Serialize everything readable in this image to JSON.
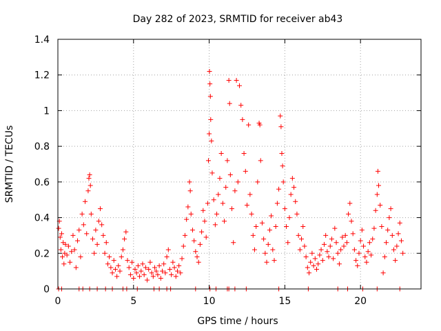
{
  "chart_data": {
    "type": "scatter",
    "title": "Day 282 of 2023, SRMTID for receiver ab43",
    "xlabel": "GPS time / hours",
    "ylabel": "SRMTID / TECUs",
    "xlim": [
      0,
      24
    ],
    "ylim": [
      0,
      1.4
    ],
    "xticks": [
      0,
      5,
      10,
      15,
      20
    ],
    "yticks": [
      0,
      0.2,
      0.4,
      0.6,
      0.8,
      1,
      1.2,
      1.4
    ],
    "ytick_labels": [
      "0",
      "0.2",
      "0.4",
      "0.6",
      "0.8",
      "1",
      "1.2",
      "1.4"
    ],
    "grid": true,
    "marker": "+",
    "color": "#ff0000",
    "series": [
      {
        "name": "SRMTID",
        "points": [
          [
            0.05,
            0.34
          ],
          [
            0.1,
            0.38
          ],
          [
            0.15,
            0.29
          ],
          [
            0.2,
            0.22
          ],
          [
            0.25,
            0.31
          ],
          [
            0.3,
            0.18
          ],
          [
            0.35,
            0.26
          ],
          [
            0.4,
            0.14
          ],
          [
            0.45,
            0.2
          ],
          [
            0.5,
            0.25
          ],
          [
            0.6,
            0.19
          ],
          [
            0.7,
            0.24
          ],
          [
            0.8,
            0.15
          ],
          [
            0.9,
            0.21
          ],
          [
            1.0,
            0.3
          ],
          [
            1.1,
            0.22
          ],
          [
            1.2,
            0.12
          ],
          [
            1.3,
            0.27
          ],
          [
            1.4,
            0.33
          ],
          [
            1.5,
            0.18
          ],
          [
            1.6,
            0.42
          ],
          [
            1.7,
            0.36
          ],
          [
            1.8,
            0.49
          ],
          [
            1.9,
            0.31
          ],
          [
            2.0,
            0.55
          ],
          [
            2.05,
            0.62
          ],
          [
            2.1,
            0.64
          ],
          [
            2.15,
            0.58
          ],
          [
            2.2,
            0.42
          ],
          [
            2.3,
            0.28
          ],
          [
            2.4,
            0.2
          ],
          [
            2.5,
            0.33
          ],
          [
            2.6,
            0.25
          ],
          [
            2.7,
            0.38
          ],
          [
            2.8,
            0.45
          ],
          [
            2.9,
            0.36
          ],
          [
            3.0,
            0.3
          ],
          [
            3.1,
            0.2
          ],
          [
            3.2,
            0.26
          ],
          [
            3.3,
            0.14
          ],
          [
            3.4,
            0.18
          ],
          [
            3.5,
            0.12
          ],
          [
            3.6,
            0.09
          ],
          [
            3.7,
            0.16
          ],
          [
            3.8,
            0.11
          ],
          [
            3.9,
            0.07
          ],
          [
            4.0,
            0.13
          ],
          [
            4.1,
            0.1
          ],
          [
            4.2,
            0.18
          ],
          [
            4.3,
            0.22
          ],
          [
            4.4,
            0.28
          ],
          [
            4.5,
            0.32
          ],
          [
            4.6,
            0.16
          ],
          [
            4.7,
            0.12
          ],
          [
            4.8,
            0.08
          ],
          [
            4.9,
            0.15
          ],
          [
            5.0,
            0.06
          ],
          [
            5.1,
            0.11
          ],
          [
            5.2,
            0.09
          ],
          [
            5.3,
            0.13
          ],
          [
            5.4,
            0.07
          ],
          [
            5.5,
            0.1
          ],
          [
            5.6,
            0.14
          ],
          [
            5.7,
            0.08
          ],
          [
            5.8,
            0.12
          ],
          [
            5.9,
            0.05
          ],
          [
            6.0,
            0.11
          ],
          [
            6.1,
            0.15
          ],
          [
            6.2,
            0.09
          ],
          [
            6.3,
            0.07
          ],
          [
            6.4,
            0.12
          ],
          [
            6.5,
            0.1
          ],
          [
            6.6,
            0.08
          ],
          [
            6.7,
            0.13
          ],
          [
            6.8,
            0.06
          ],
          [
            6.9,
            0.1
          ],
          [
            7.0,
            0.14
          ],
          [
            7.1,
            0.09
          ],
          [
            7.2,
            0.18
          ],
          [
            7.3,
            0.22
          ],
          [
            7.4,
            0.11
          ],
          [
            7.5,
            0.08
          ],
          [
            7.6,
            0.15
          ],
          [
            7.7,
            0.12
          ],
          [
            7.8,
            0.07
          ],
          [
            7.9,
            0.1
          ],
          [
            8.0,
            0.13
          ],
          [
            8.1,
            0.09
          ],
          [
            8.2,
            0.17
          ],
          [
            8.3,
            0.24
          ],
          [
            8.4,
            0.3
          ],
          [
            8.5,
            0.39
          ],
          [
            8.6,
            0.46
          ],
          [
            8.7,
            0.6
          ],
          [
            8.75,
            0.55
          ],
          [
            8.8,
            0.42
          ],
          [
            8.9,
            0.33
          ],
          [
            9.0,
            0.27
          ],
          [
            9.1,
            0.21
          ],
          [
            9.2,
            0.18
          ],
          [
            9.3,
            0.15
          ],
          [
            9.4,
            0.25
          ],
          [
            9.5,
            0.32
          ],
          [
            9.6,
            0.44
          ],
          [
            9.7,
            0.38
          ],
          [
            9.8,
            0.29
          ],
          [
            9.9,
            0.48
          ],
          [
            9.95,
            0.72
          ],
          [
            10.0,
            0.87
          ],
          [
            10.02,
            1.22
          ],
          [
            10.05,
            1.15
          ],
          [
            10.08,
            1.08
          ],
          [
            10.1,
            0.95
          ],
          [
            10.15,
            0.83
          ],
          [
            10.2,
            0.65
          ],
          [
            10.3,
            0.5
          ],
          [
            10.4,
            0.36
          ],
          [
            10.5,
            0.42
          ],
          [
            10.6,
            0.53
          ],
          [
            10.7,
            0.62
          ],
          [
            10.8,
            0.76
          ],
          [
            10.9,
            0.48
          ],
          [
            11.0,
            0.38
          ],
          [
            11.1,
            0.57
          ],
          [
            11.2,
            0.72
          ],
          [
            11.3,
            1.17
          ],
          [
            11.35,
            1.04
          ],
          [
            11.4,
            0.64
          ],
          [
            11.5,
            0.45
          ],
          [
            11.6,
            0.26
          ],
          [
            11.7,
            0.55
          ],
          [
            11.8,
            1.17
          ],
          [
            11.9,
            0.6
          ],
          [
            12.0,
            1.14
          ],
          [
            12.1,
            1.03
          ],
          [
            12.2,
            0.95
          ],
          [
            12.3,
            0.76
          ],
          [
            12.4,
            0.66
          ],
          [
            12.5,
            0.47
          ],
          [
            12.6,
            0.92
          ],
          [
            12.7,
            0.53
          ],
          [
            12.8,
            0.42
          ],
          [
            12.9,
            0.3
          ],
          [
            13.0,
            0.22
          ],
          [
            13.1,
            0.35
          ],
          [
            13.2,
            0.6
          ],
          [
            13.3,
            0.93
          ],
          [
            13.35,
            0.92
          ],
          [
            13.4,
            0.72
          ],
          [
            13.5,
            0.37
          ],
          [
            13.6,
            0.28
          ],
          [
            13.7,
            0.2
          ],
          [
            13.8,
            0.15
          ],
          [
            13.9,
            0.25
          ],
          [
            14.0,
            0.33
          ],
          [
            14.1,
            0.41
          ],
          [
            14.2,
            0.22
          ],
          [
            14.3,
            0.16
          ],
          [
            14.4,
            0.35
          ],
          [
            14.5,
            0.48
          ],
          [
            14.6,
            0.56
          ],
          [
            14.7,
            0.97
          ],
          [
            14.75,
            0.91
          ],
          [
            14.8,
            0.76
          ],
          [
            14.85,
            0.69
          ],
          [
            14.9,
            0.6
          ],
          [
            15.0,
            0.45
          ],
          [
            15.1,
            0.35
          ],
          [
            15.2,
            0.26
          ],
          [
            15.3,
            0.4
          ],
          [
            15.4,
            0.53
          ],
          [
            15.5,
            0.62
          ],
          [
            15.6,
            0.57
          ],
          [
            15.7,
            0.49
          ],
          [
            15.8,
            0.42
          ],
          [
            15.9,
            0.3
          ],
          [
            16.0,
            0.22
          ],
          [
            16.1,
            0.28
          ],
          [
            16.2,
            0.35
          ],
          [
            16.3,
            0.24
          ],
          [
            16.4,
            0.18
          ],
          [
            16.5,
            0.12
          ],
          [
            16.6,
            0.09
          ],
          [
            16.7,
            0.15
          ],
          [
            16.8,
            0.2
          ],
          [
            16.9,
            0.13
          ],
          [
            17.0,
            0.17
          ],
          [
            17.1,
            0.11
          ],
          [
            17.2,
            0.14
          ],
          [
            17.3,
            0.19
          ],
          [
            17.4,
            0.22
          ],
          [
            17.5,
            0.16
          ],
          [
            17.6,
            0.25
          ],
          [
            17.7,
            0.3
          ],
          [
            17.8,
            0.21
          ],
          [
            17.9,
            0.18
          ],
          [
            18.0,
            0.24
          ],
          [
            18.1,
            0.28
          ],
          [
            18.2,
            0.17
          ],
          [
            18.3,
            0.34
          ],
          [
            18.4,
            0.26
          ],
          [
            18.5,
            0.2
          ],
          [
            18.6,
            0.14
          ],
          [
            18.7,
            0.22
          ],
          [
            18.8,
            0.29
          ],
          [
            18.9,
            0.24
          ],
          [
            19.0,
            0.3
          ],
          [
            19.1,
            0.26
          ],
          [
            19.2,
            0.42
          ],
          [
            19.3,
            0.48
          ],
          [
            19.4,
            0.38
          ],
          [
            19.5,
            0.31
          ],
          [
            19.6,
            0.22
          ],
          [
            19.7,
            0.16
          ],
          [
            19.8,
            0.13
          ],
          [
            19.9,
            0.2
          ],
          [
            20.0,
            0.27
          ],
          [
            20.1,
            0.33
          ],
          [
            20.2,
            0.24
          ],
          [
            20.3,
            0.18
          ],
          [
            20.4,
            0.15
          ],
          [
            20.5,
            0.21
          ],
          [
            20.6,
            0.26
          ],
          [
            20.7,
            0.19
          ],
          [
            20.8,
            0.28
          ],
          [
            20.9,
            0.34
          ],
          [
            21.0,
            0.44
          ],
          [
            21.1,
            0.53
          ],
          [
            21.15,
            0.66
          ],
          [
            21.2,
            0.58
          ],
          [
            21.3,
            0.47
          ],
          [
            21.4,
            0.35
          ],
          [
            21.5,
            0.09
          ],
          [
            21.6,
            0.18
          ],
          [
            21.7,
            0.26
          ],
          [
            21.8,
            0.33
          ],
          [
            21.9,
            0.4
          ],
          [
            22.0,
            0.45
          ],
          [
            22.1,
            0.3
          ],
          [
            22.2,
            0.22
          ],
          [
            22.3,
            0.16
          ],
          [
            22.4,
            0.24
          ],
          [
            22.5,
            0.31
          ],
          [
            22.6,
            0.37
          ],
          [
            22.7,
            0.27
          ],
          [
            22.8,
            0.2
          ]
        ]
      }
    ],
    "zero_points_x": [
      0.05,
      0.25,
      1.4,
      1.65,
      2.1,
      2.6,
      3.15,
      3.6,
      4.3,
      4.55,
      5.25,
      6.35,
      6.7,
      7.2,
      7.45,
      9.1,
      10.05,
      10.45,
      11.2,
      11.3,
      11.7,
      12.45,
      14.6,
      16.55,
      18.5,
      19.15,
      20.15,
      21.1,
      22.6
    ]
  }
}
